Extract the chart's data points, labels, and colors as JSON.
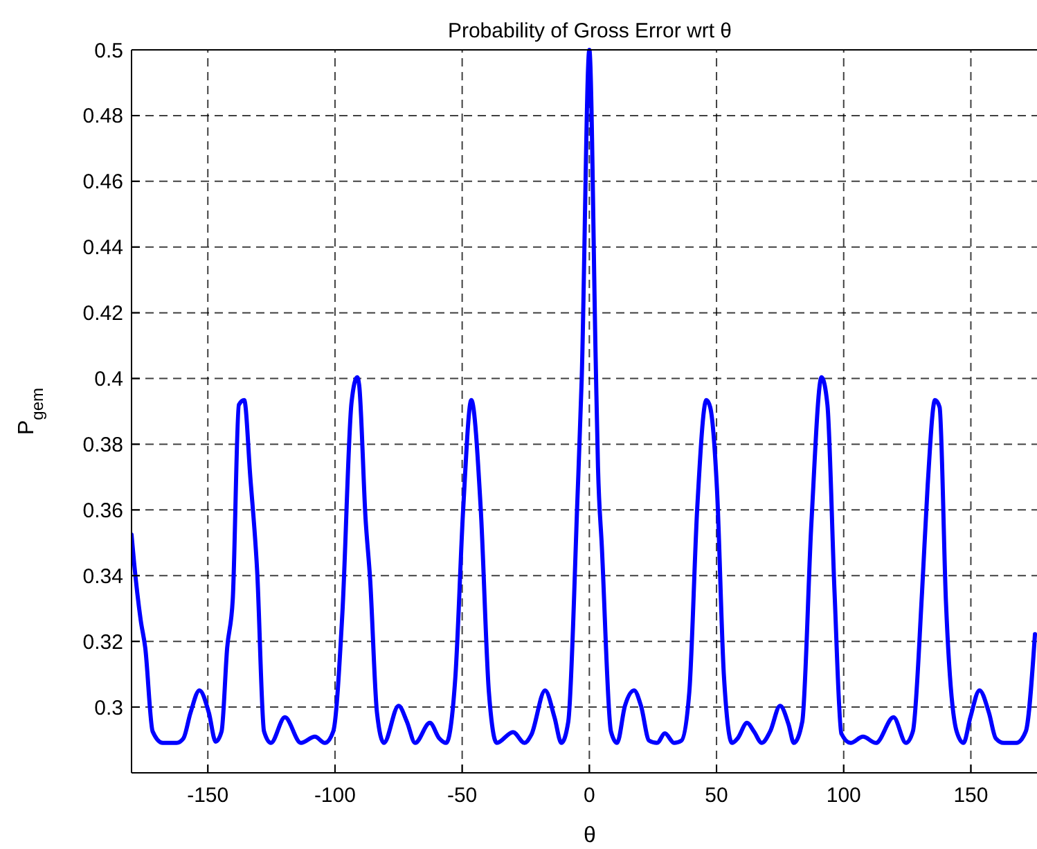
{
  "chart_data": {
    "type": "line",
    "title": "Probability of Gross Error wrt θ",
    "xlabel": "θ",
    "ylabel": "P$_{gem}$",
    "xlim": [
      -180,
      176
    ],
    "ylim": [
      0.28,
      0.5
    ],
    "xticks": [
      -150,
      -100,
      -50,
      0,
      50,
      100,
      150
    ],
    "yticks": [
      0.3,
      0.32,
      0.34,
      0.36,
      0.38,
      0.4,
      0.42,
      0.44,
      0.46,
      0.48,
      0.5
    ],
    "grid": true,
    "marker": "none",
    "line_style": "solid",
    "series": [
      {
        "color": "#0000ff",
        "x": [
          -180,
          -179,
          -176.4,
          -174.6,
          -171.7,
          -167.7,
          -162.3,
          -159.6,
          -156.8,
          -153.3,
          -149.6,
          -146.9,
          -144.6,
          -142.4,
          -140.2,
          -137.8,
          -135.7,
          -133.3,
          -130.6,
          -127.9,
          -125.2,
          -119.7,
          -113.4,
          -107.9,
          -104,
          -100.7,
          -97.1,
          -93.5,
          -91.3,
          -90.5,
          -88,
          -86.2,
          -83.5,
          -80.8,
          -75,
          -71.7,
          -68.5,
          -62.7,
          -59,
          -56.3,
          -52.7,
          -49.6,
          -46.4,
          -42.7,
          -39.5,
          -36.4,
          -30,
          -25.5,
          -22.8,
          -17.4,
          -13.7,
          -11,
          -8.3,
          -4.7,
          -3,
          0,
          2.5,
          3.4,
          4.9,
          8.5,
          10.9,
          14,
          17.6,
          20.3,
          23.5,
          26.6,
          29.7,
          33.3,
          36.2,
          39.3,
          42.4,
          46,
          47.5,
          50.2,
          52.9,
          56.1,
          58.3,
          62,
          64.7,
          67.8,
          71.1,
          75,
          78.3,
          80.4,
          83.7,
          87.3,
          91.3,
          93.6,
          96.4,
          99.1,
          102.7,
          107.6,
          112.7,
          119.6,
          124.5,
          127.2,
          130.8,
          133,
          135.9,
          137.7,
          140.2,
          144.4,
          147.1,
          149.8,
          153.4,
          157.1,
          159.8,
          163,
          167.9,
          171.6,
          175.2
        ],
        "values": [
          0.3525,
          0.344,
          0.3265,
          0.318,
          0.2926,
          0.2891,
          0.2891,
          0.2905,
          0.2983,
          0.3051,
          0.2983,
          0.2895,
          0.2926,
          0.318,
          0.3328,
          0.392,
          0.3934,
          0.37,
          0.3413,
          0.2926,
          0.2891,
          0.2969,
          0.2891,
          0.291,
          0.2891,
          0.2926,
          0.3286,
          0.3927,
          0.4004,
          0.398,
          0.3575,
          0.339,
          0.2983,
          0.2891,
          0.3004,
          0.2955,
          0.2891,
          0.2952,
          0.2905,
          0.2891,
          0.3089,
          0.3603,
          0.3934,
          0.3603,
          0.3046,
          0.2891,
          0.2924,
          0.2891,
          0.2916,
          0.3051,
          0.2969,
          0.2891,
          0.2955,
          0.363,
          0.4,
          0.5,
          0.4054,
          0.373,
          0.349,
          0.2926,
          0.2891,
          0.3004,
          0.3051,
          0.3004,
          0.2898,
          0.2891,
          0.292,
          0.2891,
          0.2898,
          0.3046,
          0.3603,
          0.3934,
          0.3913,
          0.366,
          0.3096,
          0.2891,
          0.2905,
          0.2952,
          0.2926,
          0.2891,
          0.2926,
          0.3004,
          0.2948,
          0.2891,
          0.2955,
          0.356,
          0.4004,
          0.392,
          0.3349,
          0.2919,
          0.2891,
          0.291,
          0.2891,
          0.2969,
          0.2891,
          0.2926,
          0.3349,
          0.3673,
          0.3934,
          0.3913,
          0.3321,
          0.2926,
          0.2891,
          0.2969,
          0.3051,
          0.2983,
          0.2905,
          0.2891,
          0.2891,
          0.2926,
          0.3222
        ]
      }
    ]
  }
}
